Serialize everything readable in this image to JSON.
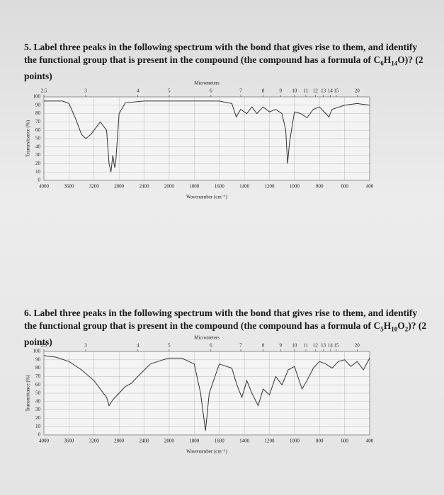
{
  "questions": [
    {
      "text_before": "5. Label three peaks in the following spectrum with the bond that gives rise to them, and identify the functional group that is present in the compound (the compound has a formula of ",
      "formula": [
        "C",
        "6",
        "H",
        "14",
        "O"
      ],
      "text_after": ")? (2 points)"
    },
    {
      "text_before": "6. Label three peaks in the following spectrum with the bond that gives rise to them, and identify the functional group that is present in the compound (the compound has a formula of ",
      "formula": [
        "C",
        "5",
        "H",
        "10",
        "O",
        "2"
      ],
      "text_after": ")? (2 points)"
    }
  ],
  "chart_data": [
    {
      "type": "line",
      "xlabel": "Wavenumber (cm⁻¹)",
      "ylabel": "Transmittance (%)",
      "x2label": "Micrometers",
      "xlim": [
        4000,
        400
      ],
      "ylim": [
        0,
        100
      ],
      "xticks": [
        4000,
        3600,
        3200,
        2800,
        2400,
        2000,
        1800,
        1600,
        1400,
        1200,
        1000,
        800,
        600,
        400
      ],
      "yticks": [
        0,
        10,
        20,
        30,
        40,
        50,
        60,
        70,
        80,
        90,
        100
      ],
      "x2ticks": [
        2.5,
        3,
        4,
        5,
        6,
        7,
        8,
        9,
        10,
        11,
        12,
        13,
        14,
        15,
        20
      ],
      "grid": true,
      "color": "#333333",
      "x": [
        4000,
        3700,
        3600,
        3500,
        3400,
        3330,
        3250,
        3100,
        3000,
        2960,
        2930,
        2900,
        2870,
        2850,
        2800,
        2700,
        2400,
        2000,
        1800,
        1600,
        1500,
        1465,
        1430,
        1380,
        1340,
        1300,
        1250,
        1200,
        1150,
        1100,
        1070,
        1055,
        1040,
        1000,
        950,
        900,
        850,
        800,
        750,
        725,
        700,
        600,
        500,
        400
      ],
      "values": [
        95,
        95,
        92,
        75,
        55,
        50,
        55,
        70,
        60,
        20,
        10,
        30,
        15,
        25,
        80,
        93,
        95,
        95,
        95,
        95,
        92,
        76,
        85,
        80,
        88,
        80,
        88,
        82,
        85,
        80,
        60,
        20,
        45,
        82,
        80,
        75,
        85,
        88,
        80,
        76,
        85,
        90,
        92,
        90
      ]
    },
    {
      "type": "line",
      "xlabel": "Wavenumber (cm⁻¹)",
      "ylabel": "Transmittance (%)",
      "x2label": "Micrometers",
      "xlim": [
        4000,
        400
      ],
      "ylim": [
        0,
        100
      ],
      "xticks": [
        4000,
        3600,
        3200,
        2800,
        2400,
        2000,
        1800,
        1600,
        1400,
        1200,
        1000,
        800,
        600,
        400
      ],
      "yticks": [
        0,
        10,
        20,
        30,
        40,
        50,
        60,
        70,
        80,
        90,
        100
      ],
      "x2ticks": [
        2.5,
        3,
        4,
        5,
        6,
        7,
        8,
        9,
        10,
        11,
        12,
        13,
        14,
        15,
        20
      ],
      "grid": true,
      "color": "#333333",
      "x": [
        4000,
        3800,
        3600,
        3400,
        3200,
        3000,
        2960,
        2900,
        2800,
        2700,
        2600,
        2500,
        2300,
        2100,
        2000,
        1900,
        1800,
        1750,
        1710,
        1680,
        1600,
        1500,
        1460,
        1420,
        1380,
        1340,
        1290,
        1250,
        1200,
        1150,
        1100,
        1050,
        1000,
        940,
        900,
        850,
        800,
        750,
        700,
        650,
        600,
        550,
        500,
        450,
        400
      ],
      "values": [
        95,
        93,
        88,
        78,
        65,
        45,
        35,
        42,
        50,
        58,
        62,
        70,
        85,
        90,
        92,
        92,
        85,
        50,
        5,
        50,
        85,
        80,
        60,
        45,
        65,
        50,
        35,
        55,
        48,
        70,
        60,
        78,
        82,
        55,
        65,
        80,
        88,
        85,
        80,
        88,
        90,
        82,
        88,
        78,
        92
      ]
    }
  ]
}
